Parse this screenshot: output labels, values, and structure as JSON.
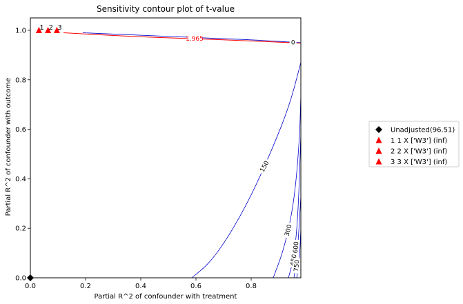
{
  "chart_data": {
    "type": "contour",
    "title": "Sensitivity contour plot of t-value",
    "xlabel": "Partial R^2 of confounder with treatment",
    "ylabel": "Partial R^2 of confounder with outcome",
    "xlim": [
      0,
      0.98
    ],
    "ylim": [
      0,
      1.05
    ],
    "x_ticks": [
      0.0,
      0.2,
      0.4,
      0.6,
      0.8
    ],
    "x_tick_labels": [
      "0.0",
      "0.2",
      "0.4",
      "0.6",
      "0.8"
    ],
    "y_ticks": [
      0.0,
      0.2,
      0.4,
      0.6,
      0.8,
      1.0
    ],
    "y_tick_labels": [
      "0.0",
      "0.2",
      "0.4",
      "0.6",
      "0.8",
      "1.0"
    ],
    "grid": false,
    "legend_position": "outside-right",
    "contours": [
      {
        "label": "0",
        "color": "#0000cc",
        "points": [
          [
            0.19,
            0.99
          ],
          [
            0.5,
            0.975
          ],
          [
            0.8,
            0.962
          ],
          [
            0.98,
            0.95
          ]
        ]
      },
      {
        "label": "1.965",
        "color": "#ff0000",
        "critical": true,
        "points": [
          [
            0.12,
            0.99
          ],
          [
            0.4,
            0.973
          ],
          [
            0.7,
            0.962
          ],
          [
            0.98,
            0.948
          ]
        ]
      },
      {
        "label": "150",
        "color": "#0000cc",
        "points": [
          [
            0.585,
            0.0
          ],
          [
            0.65,
            0.06
          ],
          [
            0.72,
            0.17
          ],
          [
            0.8,
            0.33
          ],
          [
            0.88,
            0.53
          ],
          [
            0.94,
            0.7
          ],
          [
            0.98,
            0.87
          ]
        ]
      },
      {
        "label": "300",
        "color": "#0000cc",
        "points": [
          [
            0.88,
            0.0
          ],
          [
            0.92,
            0.12
          ],
          [
            0.955,
            0.3
          ],
          [
            0.975,
            0.55
          ],
          [
            0.98,
            0.74
          ]
        ]
      },
      {
        "label": "450",
        "color": "#0000cc",
        "points": [
          [
            0.935,
            0.0
          ],
          [
            0.955,
            0.08
          ],
          [
            0.97,
            0.25
          ],
          [
            0.98,
            0.58
          ]
        ]
      },
      {
        "label": "600",
        "color": "#0000cc",
        "points": [
          [
            0.955,
            0.0
          ],
          [
            0.968,
            0.1
          ],
          [
            0.98,
            0.33
          ]
        ]
      },
      {
        "label": "750",
        "color": "#0000cc",
        "points": [
          [
            0.965,
            0.0
          ],
          [
            0.975,
            0.07
          ],
          [
            0.98,
            0.2
          ]
        ]
      }
    ],
    "points": [
      {
        "label": "Unadjusted(96.51)",
        "x": 0.0,
        "y": 0.0,
        "marker": "diamond",
        "color": "#000000",
        "annotation": ""
      },
      {
        "label": "1  1 X ['W3'] (inf)",
        "x": 0.031,
        "y": 1.0,
        "marker": "triangle",
        "color": "#ff0000",
        "annotation": "1"
      },
      {
        "label": "2  2 X ['W3'] (inf)",
        "x": 0.064,
        "y": 1.0,
        "marker": "triangle",
        "color": "#ff0000",
        "annotation": "2"
      },
      {
        "label": "3  3 X ['W3'] (inf)",
        "x": 0.096,
        "y": 1.0,
        "marker": "triangle",
        "color": "#ff0000",
        "annotation": "3"
      }
    ]
  }
}
